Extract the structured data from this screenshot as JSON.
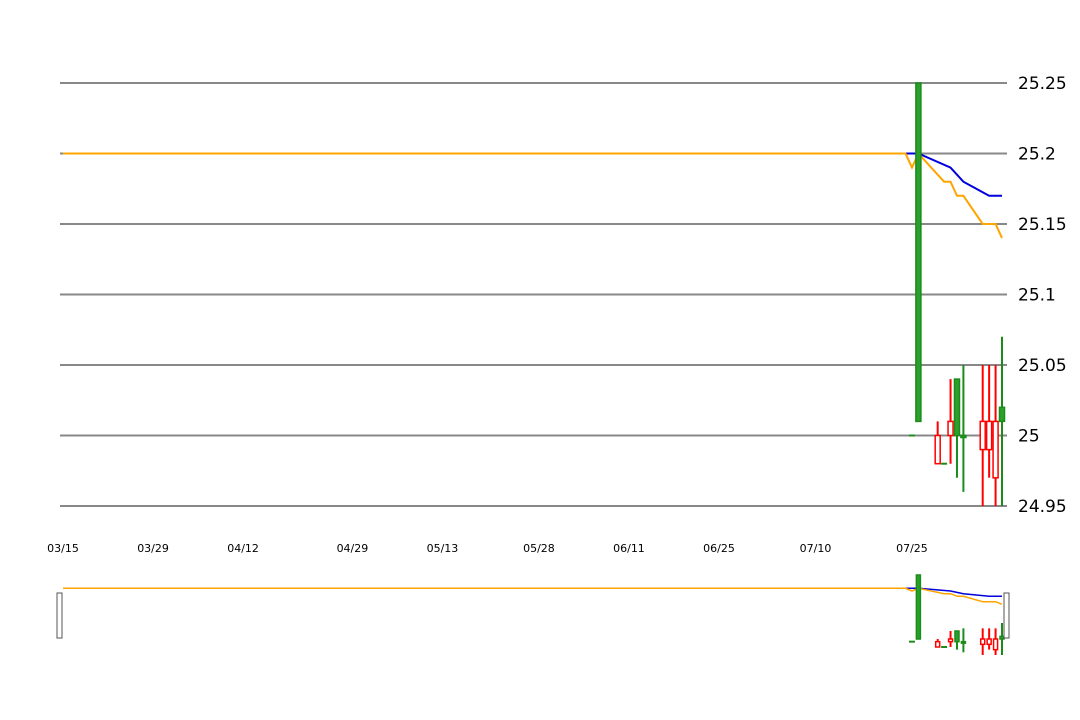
{
  "chart_data": {
    "type": "candlestick",
    "title": "",
    "xlabel": "",
    "ylabel": "",
    "ylim": [
      24.95,
      25.25
    ],
    "y_ticks": [
      "25.25",
      "25.2",
      "25.15",
      "25.1",
      "25.05",
      "25",
      "24.95"
    ],
    "x_tick_labels": [
      "03/15",
      "03/29",
      "04/12",
      "04/29",
      "05/13",
      "05/28",
      "06/11",
      "06/25",
      "07/10",
      "07/25"
    ],
    "grid": true,
    "legend": "none",
    "navigator": true,
    "colors": {
      "up": "#1a8c1a",
      "up_fill": "#2ca02c",
      "down": "#ff0000",
      "line_slow": "#0000dd",
      "line_fast": "#ffa500",
      "grid": "#888888"
    },
    "candles": [
      {
        "x": "07/25",
        "open": 25.0,
        "high": 25.0,
        "low": 25.0,
        "close": 25.0
      },
      {
        "x": "07/26",
        "open": 25.01,
        "high": 25.25,
        "low": 25.01,
        "close": 25.25
      },
      {
        "x": "07/29",
        "open": 25.0,
        "high": 25.01,
        "low": 24.98,
        "close": 24.98
      },
      {
        "x": "07/30",
        "open": 24.98,
        "high": 24.98,
        "low": 24.98,
        "close": 24.98
      },
      {
        "x": "07/31",
        "open": 25.01,
        "high": 25.04,
        "low": 24.98,
        "close": 25.0
      },
      {
        "x": "08/01",
        "open": 25.0,
        "high": 25.04,
        "low": 24.97,
        "close": 25.04
      },
      {
        "x": "08/02",
        "open": 25.0,
        "high": 25.05,
        "low": 24.96,
        "close": 25.0
      },
      {
        "x": "08/05",
        "open": 25.01,
        "high": 25.05,
        "low": 24.95,
        "close": 24.99
      },
      {
        "x": "08/06",
        "open": 25.01,
        "high": 25.05,
        "low": 24.97,
        "close": 24.99
      },
      {
        "x": "08/07",
        "open": 25.01,
        "high": 25.05,
        "low": 24.95,
        "close": 24.97
      },
      {
        "x": "08/08",
        "open": 25.01,
        "high": 25.07,
        "low": 24.95,
        "close": 25.02
      }
    ],
    "series": [
      {
        "values": [
          {
            "x": "03/15",
            "y": 25.2
          },
          {
            "x": "07/25",
            "y": 25.2
          },
          {
            "x": "07/26",
            "y": 25.2
          },
          {
            "x": "07/31",
            "y": 25.19
          },
          {
            "x": "08/02",
            "y": 25.18
          },
          {
            "x": "08/06",
            "y": 25.17
          },
          {
            "x": "08/08",
            "y": 25.17
          }
        ]
      },
      {
        "values": [
          {
            "x": "03/15",
            "y": 25.2
          },
          {
            "x": "07/24",
            "y": 25.2
          },
          {
            "x": "07/25",
            "y": 25.19
          },
          {
            "x": "07/26",
            "y": 25.2
          },
          {
            "x": "07/30",
            "y": 25.18
          },
          {
            "x": "07/31",
            "y": 25.18
          },
          {
            "x": "08/01",
            "y": 25.17
          },
          {
            "x": "08/02",
            "y": 25.17
          },
          {
            "x": "08/05",
            "y": 25.15
          },
          {
            "x": "08/07",
            "y": 25.15
          },
          {
            "x": "08/08",
            "y": 25.14
          }
        ]
      }
    ]
  }
}
